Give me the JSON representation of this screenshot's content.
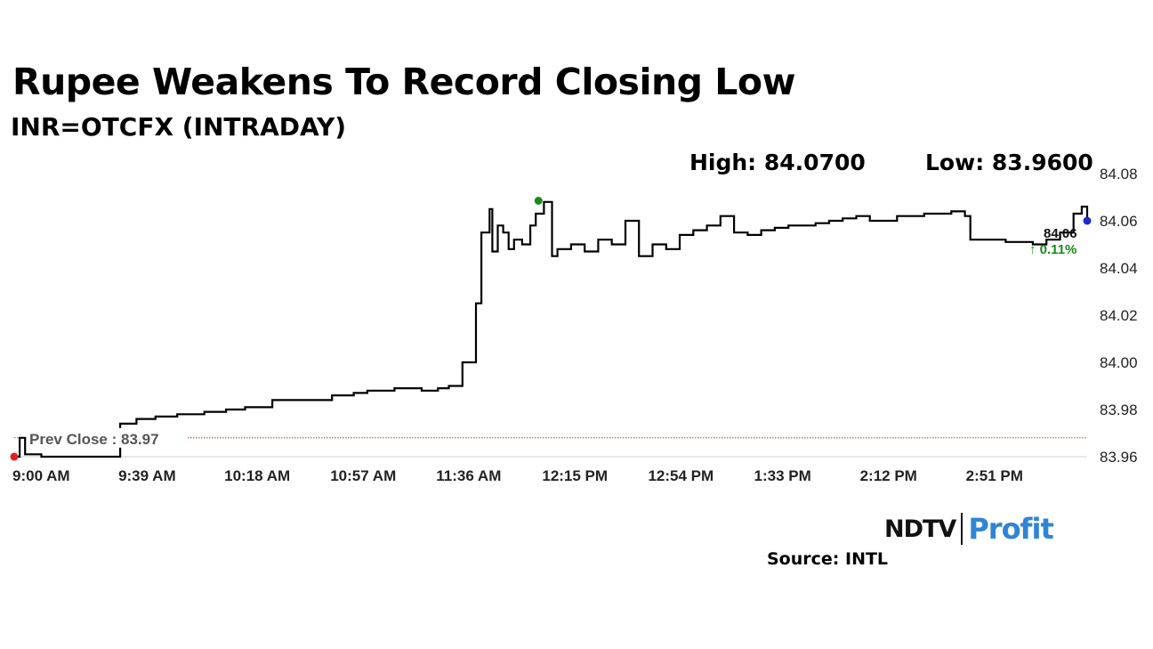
{
  "header": {
    "title": "Rupee Weakens To Record Closing Low",
    "subtitle": "INR=OTCFX (INTRADAY)",
    "high_text": "High: 84.0700",
    "low_text": "Low: 83.9600"
  },
  "footer": {
    "source_text": "Source: INTL",
    "logo_left": "NDTV",
    "logo_right": "Profit"
  },
  "chart_data": {
    "type": "line",
    "title": "Rupee Weakens To Record Closing Low",
    "subtitle": "INR=OTCFX (INTRADAY)",
    "x_tick_labels": [
      "9:00 AM",
      "9:39 AM",
      "10:18 AM",
      "10:57 AM",
      "11:36 AM",
      "12:15 PM",
      "12:54 PM",
      "1:33 PM",
      "2:12 PM",
      "2:51 PM"
    ],
    "y_tick_labels": [
      "84.08",
      "84.06",
      "84.04",
      "84.02",
      "84.00",
      "83.98",
      "83.96"
    ],
    "ylim": [
      83.96,
      84.08
    ],
    "xlim_minutes_after_9am": [
      0,
      395
    ],
    "x": [
      0,
      2,
      4,
      10,
      25,
      39,
      45,
      52,
      60,
      70,
      78,
      85,
      95,
      105,
      117,
      125,
      130,
      140,
      150,
      156,
      160,
      165,
      170,
      172,
      175,
      176,
      178,
      180,
      182,
      184,
      187,
      190,
      192,
      195,
      198,
      200,
      205,
      210,
      215,
      220,
      225,
      230,
      235,
      240,
      245,
      250,
      255,
      260,
      265,
      270,
      275,
      280,
      285,
      290,
      295,
      300,
      305,
      310,
      315,
      320,
      325,
      330,
      335,
      340,
      345,
      350,
      352,
      355,
      360,
      365,
      370,
      375,
      380,
      385,
      390,
      393,
      395
    ],
    "values": [
      83.96,
      83.968,
      83.961,
      83.96,
      83.96,
      83.974,
      83.976,
      83.977,
      83.978,
      83.979,
      83.98,
      83.981,
      83.984,
      83.984,
      83.986,
      83.987,
      83.988,
      83.989,
      83.988,
      83.989,
      83.99,
      84.0,
      84.025,
      84.055,
      84.065,
      84.047,
      84.058,
      84.055,
      84.048,
      84.052,
      84.05,
      84.058,
      84.063,
      84.068,
      84.045,
      84.048,
      84.05,
      84.047,
      84.052,
      84.05,
      84.06,
      84.045,
      84.05,
      84.048,
      84.054,
      84.056,
      84.058,
      84.062,
      84.055,
      84.054,
      84.056,
      84.057,
      84.058,
      84.058,
      84.059,
      84.06,
      84.061,
      84.062,
      84.06,
      84.06,
      84.062,
      84.062,
      84.063,
      84.063,
      84.064,
      84.062,
      84.052,
      84.052,
      84.052,
      84.051,
      84.051,
      84.05,
      84.052,
      84.055,
      84.063,
      84.066,
      84.06
    ],
    "prev_close": 83.968,
    "prev_close_label": "Prev Close : 83.97",
    "last_value_label": "84.06",
    "last_change_label": "↑ 0.11%",
    "line_color": "#000000",
    "prev_close_color": "#c0392b",
    "change_color": "#1a8a1a",
    "start_marker_color": "#e02020",
    "high_marker_color": "#1a8a1a",
    "last_marker_color": "#1a2ad0",
    "high_point": {
      "x": 193,
      "y": 84.07
    },
    "grid": false,
    "legend": "none"
  }
}
